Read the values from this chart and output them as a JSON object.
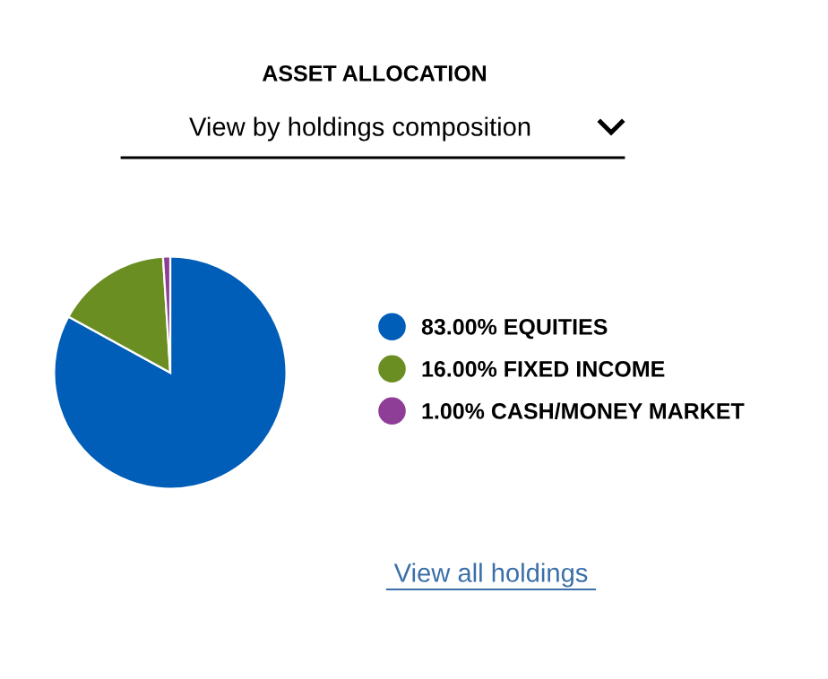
{
  "chart_data": {
    "type": "pie",
    "title": "ASSET ALLOCATION",
    "categories": [
      "EQUITIES",
      "FIXED INCOME",
      "CASH/MONEY MARKET"
    ],
    "values": [
      83,
      16,
      1
    ],
    "value_labels": [
      "83.00%",
      "16.00%",
      "1.00%"
    ],
    "colors": [
      "#005eb8",
      "#6b8e23",
      "#8e3e96"
    ],
    "legend": "right",
    "annotations": [
      "View by holdings composition",
      "View all holdings"
    ]
  }
}
